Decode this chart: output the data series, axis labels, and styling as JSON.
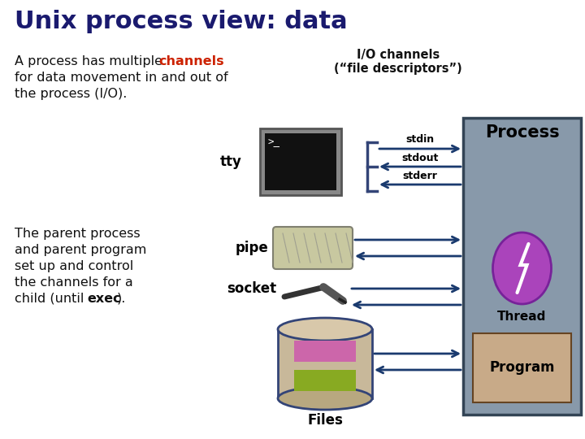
{
  "title": "Unix process view: data",
  "title_color": "#1a1a6e",
  "title_fontsize": 22,
  "bg_color": "#ffffff",
  "highlight_color": "#cc2200",
  "io_label": "I/O channels\n(“file descriptors”)",
  "tty_label": "tty",
  "pipe_label": "pipe",
  "socket_label": "socket",
  "files_label": "Files",
  "process_label": "Process",
  "thread_label": "Thread",
  "program_label": "Program",
  "stdin_label": "stdin",
  "stdout_label": "stdout",
  "stderr_label": "stderr",
  "arrow_color": "#1a3a6e",
  "process_box_color": "#8899aa",
  "process_box_edge": "#334455",
  "thread_bg": "#aa44bb",
  "program_box_color": "#c8aa88",
  "program_box_edge": "#664422",
  "tty_bg": "#111111",
  "tty_frame": "#888888",
  "font_color": "#111111",
  "brace_color": "#334477",
  "cyl_body": "#c8b89a",
  "cyl_edge": "#334477",
  "cyl_top": "#d8c8aa",
  "cyl_bot": "#b8a880",
  "rec1_color": "#cc66aa",
  "rec2_color": "#88aa22"
}
